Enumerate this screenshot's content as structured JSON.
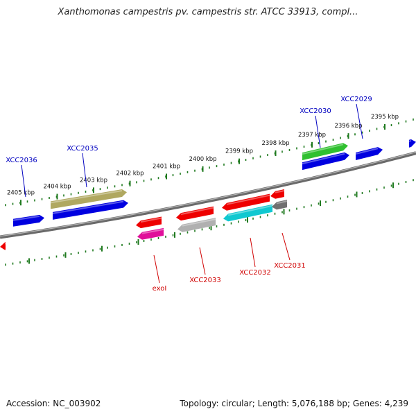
{
  "title": "Xanthomonas campestris pv. campestris str. ATCC 33913, compl...",
  "footer": {
    "accession": "Accession: NC_003902",
    "summary": "Topology: circular; Length: 5,076,188 bp; Genes: 4,239"
  },
  "colors": {
    "backbone": "#808080",
    "tick": "#1f7a1f",
    "label_forward": "#0000c0",
    "label_reverse": "#d00000",
    "blue": "#0000e0",
    "olive": "#b0a860",
    "green": "#30c030",
    "red": "#ee0000",
    "pink": "#e0109a",
    "grey": "#b0b0b0",
    "cyan": "#10c8d0",
    "dark_grey": "#707070"
  },
  "ruler": {
    "labels": [
      "2405 kbp",
      "2404 kbp",
      "2403 kbp",
      "2402 kbp",
      "2401 kbp",
      "2400 kbp",
      "2399 kbp",
      "2398 kbp",
      "2397 kbp",
      "2396 kbp",
      "2395 kbp"
    ]
  },
  "gene_labels_forward": [
    "XCC2036",
    "XCC2035",
    "XCC2030",
    "XCC2029"
  ],
  "gene_labels_reverse": [
    "exoI",
    "XCC2033",
    "XCC2032",
    "XCC2031"
  ]
}
